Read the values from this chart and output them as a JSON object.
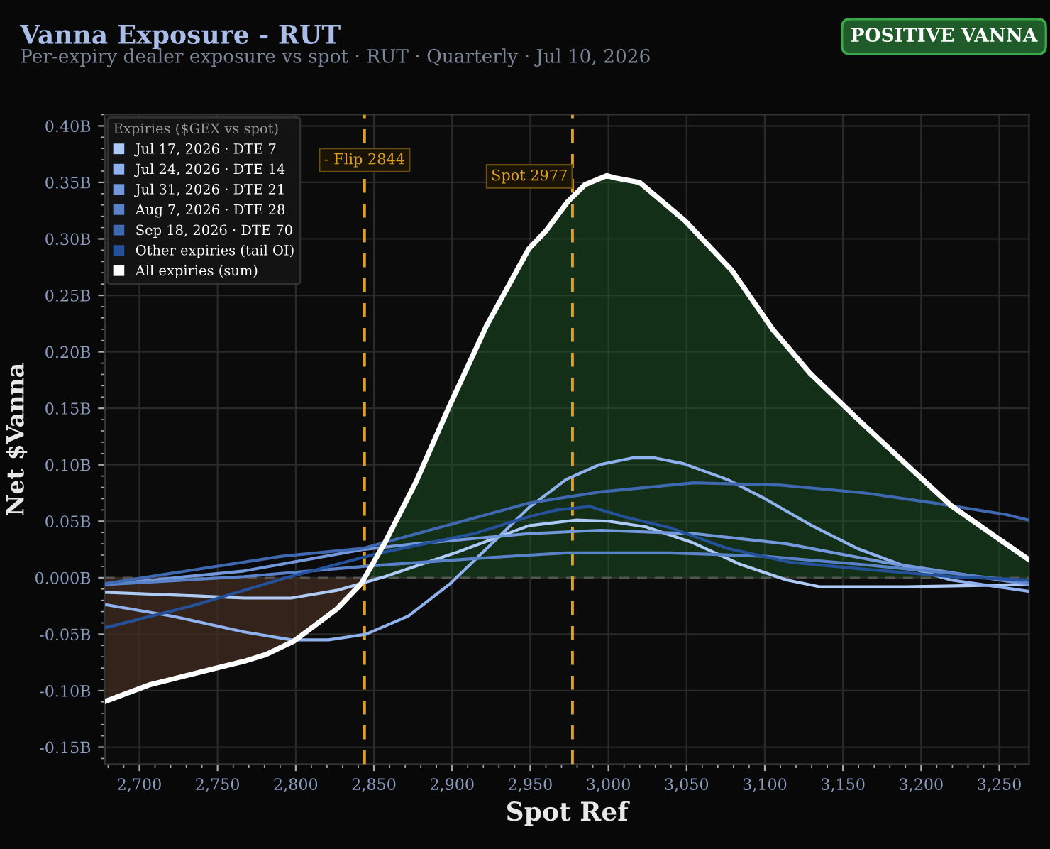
{
  "chart_data": {
    "type": "line",
    "title": "Vanna Exposure - RUT",
    "subtitle": "Per-expiry dealer exposure vs spot · RUT · Quarterly · Jul 10, 2026",
    "annotations": [
      "POSITIVE VANNA"
    ],
    "xlabel": "Spot Ref",
    "ylabel": "Net $Vanna",
    "legend_title": "Expiries ($GEX vs spot)",
    "xlim": [
      2678,
      3269
    ],
    "ylim": [
      -0.165,
      0.41
    ],
    "xticks": [
      {
        "value": 2700,
        "label": "2,700"
      },
      {
        "value": 2750,
        "label": "2,750"
      },
      {
        "value": 2800,
        "label": "2,800"
      },
      {
        "value": 2850,
        "label": "2,850"
      },
      {
        "value": 2900,
        "label": "2,900"
      },
      {
        "value": 2950,
        "label": "2,950"
      },
      {
        "value": 3000,
        "label": "3,000"
      },
      {
        "value": 3050,
        "label": "3,050"
      },
      {
        "value": 3100,
        "label": "3,100"
      },
      {
        "value": 3150,
        "label": "3,150"
      },
      {
        "value": 3200,
        "label": "3,200"
      },
      {
        "value": 3250,
        "label": "3,250"
      }
    ],
    "yticks": [
      {
        "value": -0.15,
        "label": "-0.15B"
      },
      {
        "value": -0.1,
        "label": "-0.10B"
      },
      {
        "value": -0.05,
        "label": "-0.05B"
      },
      {
        "value": 0,
        "label": "0.000B"
      },
      {
        "value": 0.05,
        "label": "0.05B"
      },
      {
        "value": 0.1,
        "label": "0.10B"
      },
      {
        "value": 0.15,
        "label": "0.15B"
      },
      {
        "value": 0.2,
        "label": "0.20B"
      },
      {
        "value": 0.25,
        "label": "0.25B"
      },
      {
        "value": 0.3,
        "label": "0.30B"
      },
      {
        "value": 0.35,
        "label": "0.35B"
      },
      {
        "value": 0.4,
        "label": "0.40B"
      }
    ],
    "grid": true,
    "legend": "top left",
    "marker": "none",
    "line_style": "solid",
    "ref_lines": [
      {
        "axis": "y",
        "value": 0,
        "color": "#555555",
        "line_style": "dashed"
      },
      {
        "axis": "x",
        "value": 2844,
        "label": "- Flip 2844",
        "color": "#e0a020",
        "line_style": "dashed"
      },
      {
        "axis": "x",
        "value": 2977,
        "label": "Spot 2977",
        "color": "#e0a020",
        "line_style": "dashed"
      }
    ],
    "series": [
      {
        "name": "Jul 17, 2026 · DTE 7",
        "color": "#aecbf7",
        "x": [
          2679,
          2736,
          2767,
          2797,
          2827,
          2857,
          2902,
          2949,
          2979,
          3000,
          3024,
          3054,
          3084,
          3114,
          3135,
          3190,
          3269
        ],
        "values": [
          -0.013,
          -0.016,
          -0.018,
          -0.018,
          -0.011,
          0.001,
          0.022,
          0.046,
          0.051,
          0.05,
          0.045,
          0.031,
          0.012,
          -0.002,
          -0.008,
          -0.008,
          -0.006
        ]
      },
      {
        "name": "Jul 24, 2026 · DTE 14",
        "color": "#8fb2ef",
        "x": [
          2679,
          2721,
          2767,
          2797,
          2821,
          2845,
          2872,
          2899,
          2929,
          2949,
          2973,
          2994,
          3015,
          3030,
          3048,
          3076,
          3100,
          3129,
          3159,
          3190,
          3219,
          3269
        ],
        "values": [
          -0.024,
          -0.034,
          -0.048,
          -0.055,
          -0.055,
          -0.05,
          -0.034,
          -0.005,
          0.035,
          0.062,
          0.087,
          0.1,
          0.106,
          0.106,
          0.101,
          0.087,
          0.07,
          0.047,
          0.026,
          0.01,
          -0.002,
          -0.012
        ]
      },
      {
        "name": "Jul 31, 2026 · DTE 21",
        "color": "#7399dc",
        "x": [
          2679,
          2767,
          2843,
          2876,
          2949,
          2995,
          3055,
          3114,
          3175,
          3269
        ],
        "values": [
          -0.006,
          0.006,
          0.025,
          0.03,
          0.039,
          0.042,
          0.039,
          0.03,
          0.014,
          -0.006
        ]
      },
      {
        "name": "Aug 7, 2026 · DTE 28",
        "color": "#5a82c8",
        "x": [
          2679,
          2767,
          2843,
          2914,
          2949,
          2973,
          3040,
          3100,
          3160,
          3219,
          3269
        ],
        "values": [
          -0.006,
          0.001,
          0.01,
          0.017,
          0.02,
          0.022,
          0.022,
          0.019,
          0.012,
          0.004,
          -0.004
        ]
      },
      {
        "name": "Sep 18, 2026 · DTE 70",
        "color": "#3f68b0",
        "x": [
          2679,
          2791,
          2843,
          2949,
          2995,
          3055,
          3110,
          3164,
          3209,
          3254,
          3269
        ],
        "values": [
          -0.005,
          0.019,
          0.026,
          0.066,
          0.076,
          0.084,
          0.082,
          0.075,
          0.066,
          0.056,
          0.051
        ]
      },
      {
        "name": "Other expiries (tail OI)",
        "color": "#24519a",
        "x": [
          2679,
          2736,
          2794,
          2854,
          2914,
          2949,
          2967,
          2988,
          3010,
          3040,
          3076,
          3115,
          3160,
          3219,
          3269
        ],
        "values": [
          -0.044,
          -0.024,
          0.0,
          0.022,
          0.039,
          0.054,
          0.06,
          0.063,
          0.054,
          0.044,
          0.026,
          0.014,
          0.008,
          0.001,
          -0.002
        ]
      },
      {
        "name": "All expiries (sum)",
        "color": "#ffffff",
        "type": "area",
        "x": [
          2679,
          2706,
          2749,
          2767,
          2781,
          2799,
          2826,
          2842,
          2857,
          2877,
          2898,
          2922,
          2949,
          2960,
          2974,
          2985,
          2999,
          3004,
          3020,
          3049,
          3079,
          3105,
          3129,
          3159,
          3190,
          3219,
          3249,
          3269
        ],
        "values": [
          -0.109,
          -0.095,
          -0.08,
          -0.074,
          -0.068,
          -0.056,
          -0.028,
          -0.005,
          0.031,
          0.085,
          0.151,
          0.223,
          0.291,
          0.307,
          0.333,
          0.348,
          0.356,
          0.354,
          0.35,
          0.316,
          0.272,
          0.22,
          0.181,
          0.141,
          0.101,
          0.064,
          0.035,
          0.016
        ]
      }
    ]
  }
}
